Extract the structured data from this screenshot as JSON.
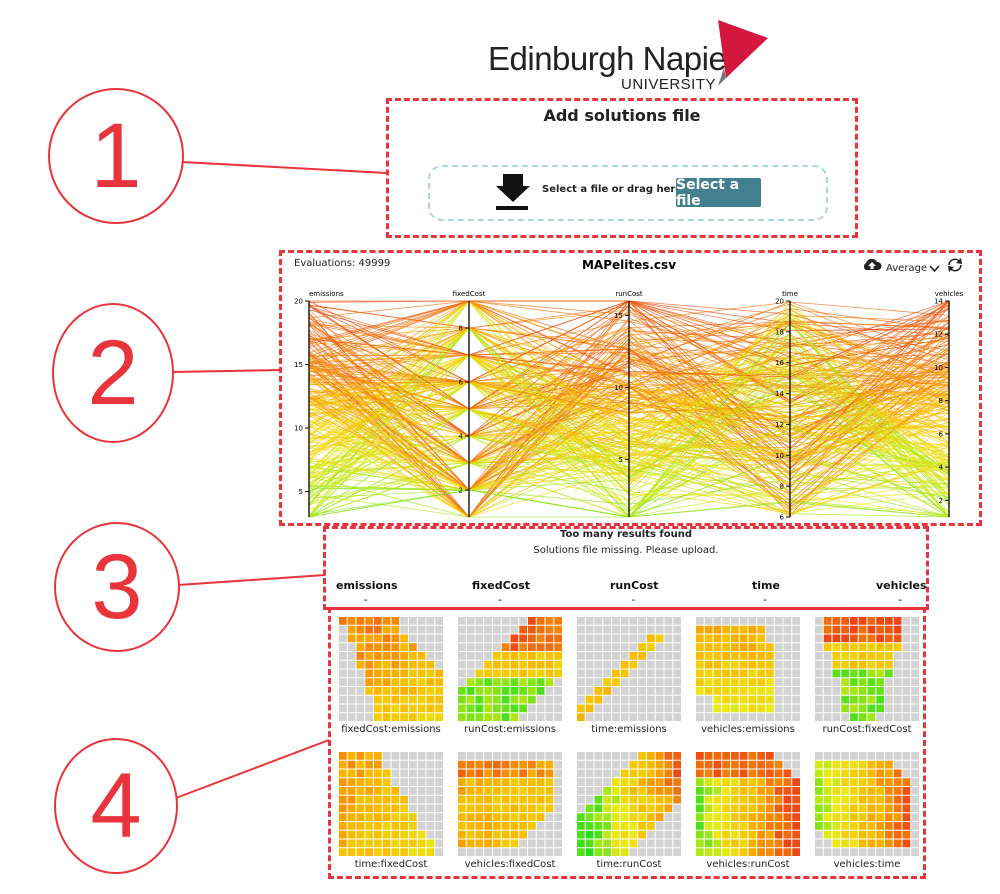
{
  "header": {
    "logo_name": "Edinburgh Napier",
    "logo_sub": "UNIVERSITY",
    "logo_color": "#d4173c"
  },
  "callouts": [
    "1",
    "2",
    "3",
    "4"
  ],
  "upload": {
    "title": "Add solutions file",
    "drop_text": "Select a file or drag here",
    "button_label": "Select a file",
    "button_color": "#43808f",
    "download_icon": "download-icon"
  },
  "parallel": {
    "evaluations": "Evaluations: 49999",
    "file_name": "MAPelites.csv",
    "aggregate": "Average",
    "icons": [
      "cloud-upload-icon",
      "chevron-down-icon",
      "refresh-icon"
    ],
    "axes": [
      {
        "name": "emissions",
        "min": 3,
        "max": 20,
        "ticks": [
          "20",
          "15",
          "10",
          "5"
        ]
      },
      {
        "name": "fixedCost",
        "min": 1,
        "max": 9,
        "ticks": [
          "8",
          "6",
          "4",
          "2"
        ]
      },
      {
        "name": "runCost",
        "min": 1,
        "max": 16,
        "ticks": [
          "15",
          "10",
          "5"
        ]
      },
      {
        "name": "time",
        "min": 6,
        "max": 20,
        "ticks": [
          "20",
          "18",
          "16",
          "14",
          "12",
          "10",
          "8",
          "6"
        ]
      },
      {
        "name": "vehicles",
        "min": 1,
        "max": 14,
        "ticks": [
          "14",
          "12",
          "10",
          "8",
          "6",
          "4",
          "2"
        ]
      }
    ]
  },
  "results": {
    "title": "Too many results found",
    "message": "Solutions file missing. Please upload.",
    "objectives": [
      {
        "name": "emissions",
        "value": "-"
      },
      {
        "name": "fixedCost",
        "value": "-"
      },
      {
        "name": "runCost",
        "value": "-"
      },
      {
        "name": "time",
        "value": "-"
      },
      {
        "name": "vehicles",
        "value": "-"
      }
    ]
  },
  "heatmaps": [
    {
      "label": "fixedCost:emissions"
    },
    {
      "label": "runCost:emissions"
    },
    {
      "label": "time:emissions"
    },
    {
      "label": "vehicles:emissions"
    },
    {
      "label": "runCost:fixedCost"
    },
    {
      "label": "time:fixedCost"
    },
    {
      "label": "vehicles:fixedCost"
    },
    {
      "label": "time:runCost"
    },
    {
      "label": "vehicles:runCost"
    },
    {
      "label": "vehicles:time"
    }
  ]
}
